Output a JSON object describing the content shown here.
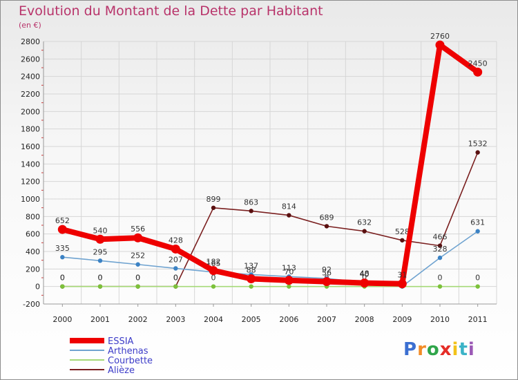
{
  "chart_data": {
    "type": "line",
    "title": "Evolution du Montant de la Dette par Habitant",
    "subtitle": "(en €)",
    "categories": [
      "2000",
      "2001",
      "2002",
      "2003",
      "2004",
      "2005",
      "2006",
      "2007",
      "2008",
      "2009",
      "2010",
      "2011"
    ],
    "ylim": [
      -200,
      2800
    ],
    "yticks": [
      -200,
      0,
      200,
      400,
      600,
      800,
      1000,
      1200,
      1400,
      1600,
      1800,
      2000,
      2200,
      2400,
      2600,
      2800
    ],
    "series": [
      {
        "name": "Alièze",
        "color": "#7a1f1f",
        "marker": "#5a1010",
        "values": [
          0,
          0,
          0,
          0,
          899,
          863,
          814,
          689,
          632,
          528,
          466,
          1532
        ],
        "labels": [
          "0",
          "0",
          "0",
          "0",
          "899",
          "863",
          "814",
          "689",
          "632",
          "528",
          "466",
          "1532"
        ]
      },
      {
        "name": "Courbette",
        "color": "#a5d977",
        "marker": "#7cc13a",
        "values": [
          0,
          0,
          0,
          0,
          0,
          0,
          0,
          0,
          0,
          0,
          0,
          0
        ],
        "labels": [
          "0",
          "0",
          "0",
          "0",
          "0",
          "0",
          "0",
          "0",
          "0",
          "0",
          "0",
          "0"
        ]
      },
      {
        "name": "Arthenas",
        "color": "#6fa3d0",
        "marker": "#3b82c4",
        "values": [
          335,
          295,
          252,
          207,
          165,
          137,
          113,
          92,
          48,
          0,
          328,
          631
        ],
        "labels": [
          "335",
          "295",
          "252",
          "207",
          "165",
          "137",
          "113",
          "92",
          "48",
          "0",
          "328",
          "631"
        ]
      },
      {
        "name": "ESSIA",
        "color": "#ee0000",
        "marker": "#ee0000",
        "values": [
          652,
          540,
          556,
          428,
          182,
          88,
          70,
          56,
          40,
          31,
          2760,
          2450
        ],
        "labels": [
          "652",
          "540",
          "556",
          "428",
          "182",
          "88",
          "70",
          "56",
          "40",
          "31",
          "2760",
          "2450"
        ]
      }
    ],
    "legend": [
      {
        "name": "ESSIA",
        "color": "#ee0000"
      },
      {
        "name": "Arthenas",
        "color": "#6fa3d0"
      },
      {
        "name": "Courbette",
        "color": "#a5d977"
      },
      {
        "name": "Alièze",
        "color": "#7a1f1f"
      }
    ]
  },
  "logo": {
    "text": "Proxiti"
  }
}
